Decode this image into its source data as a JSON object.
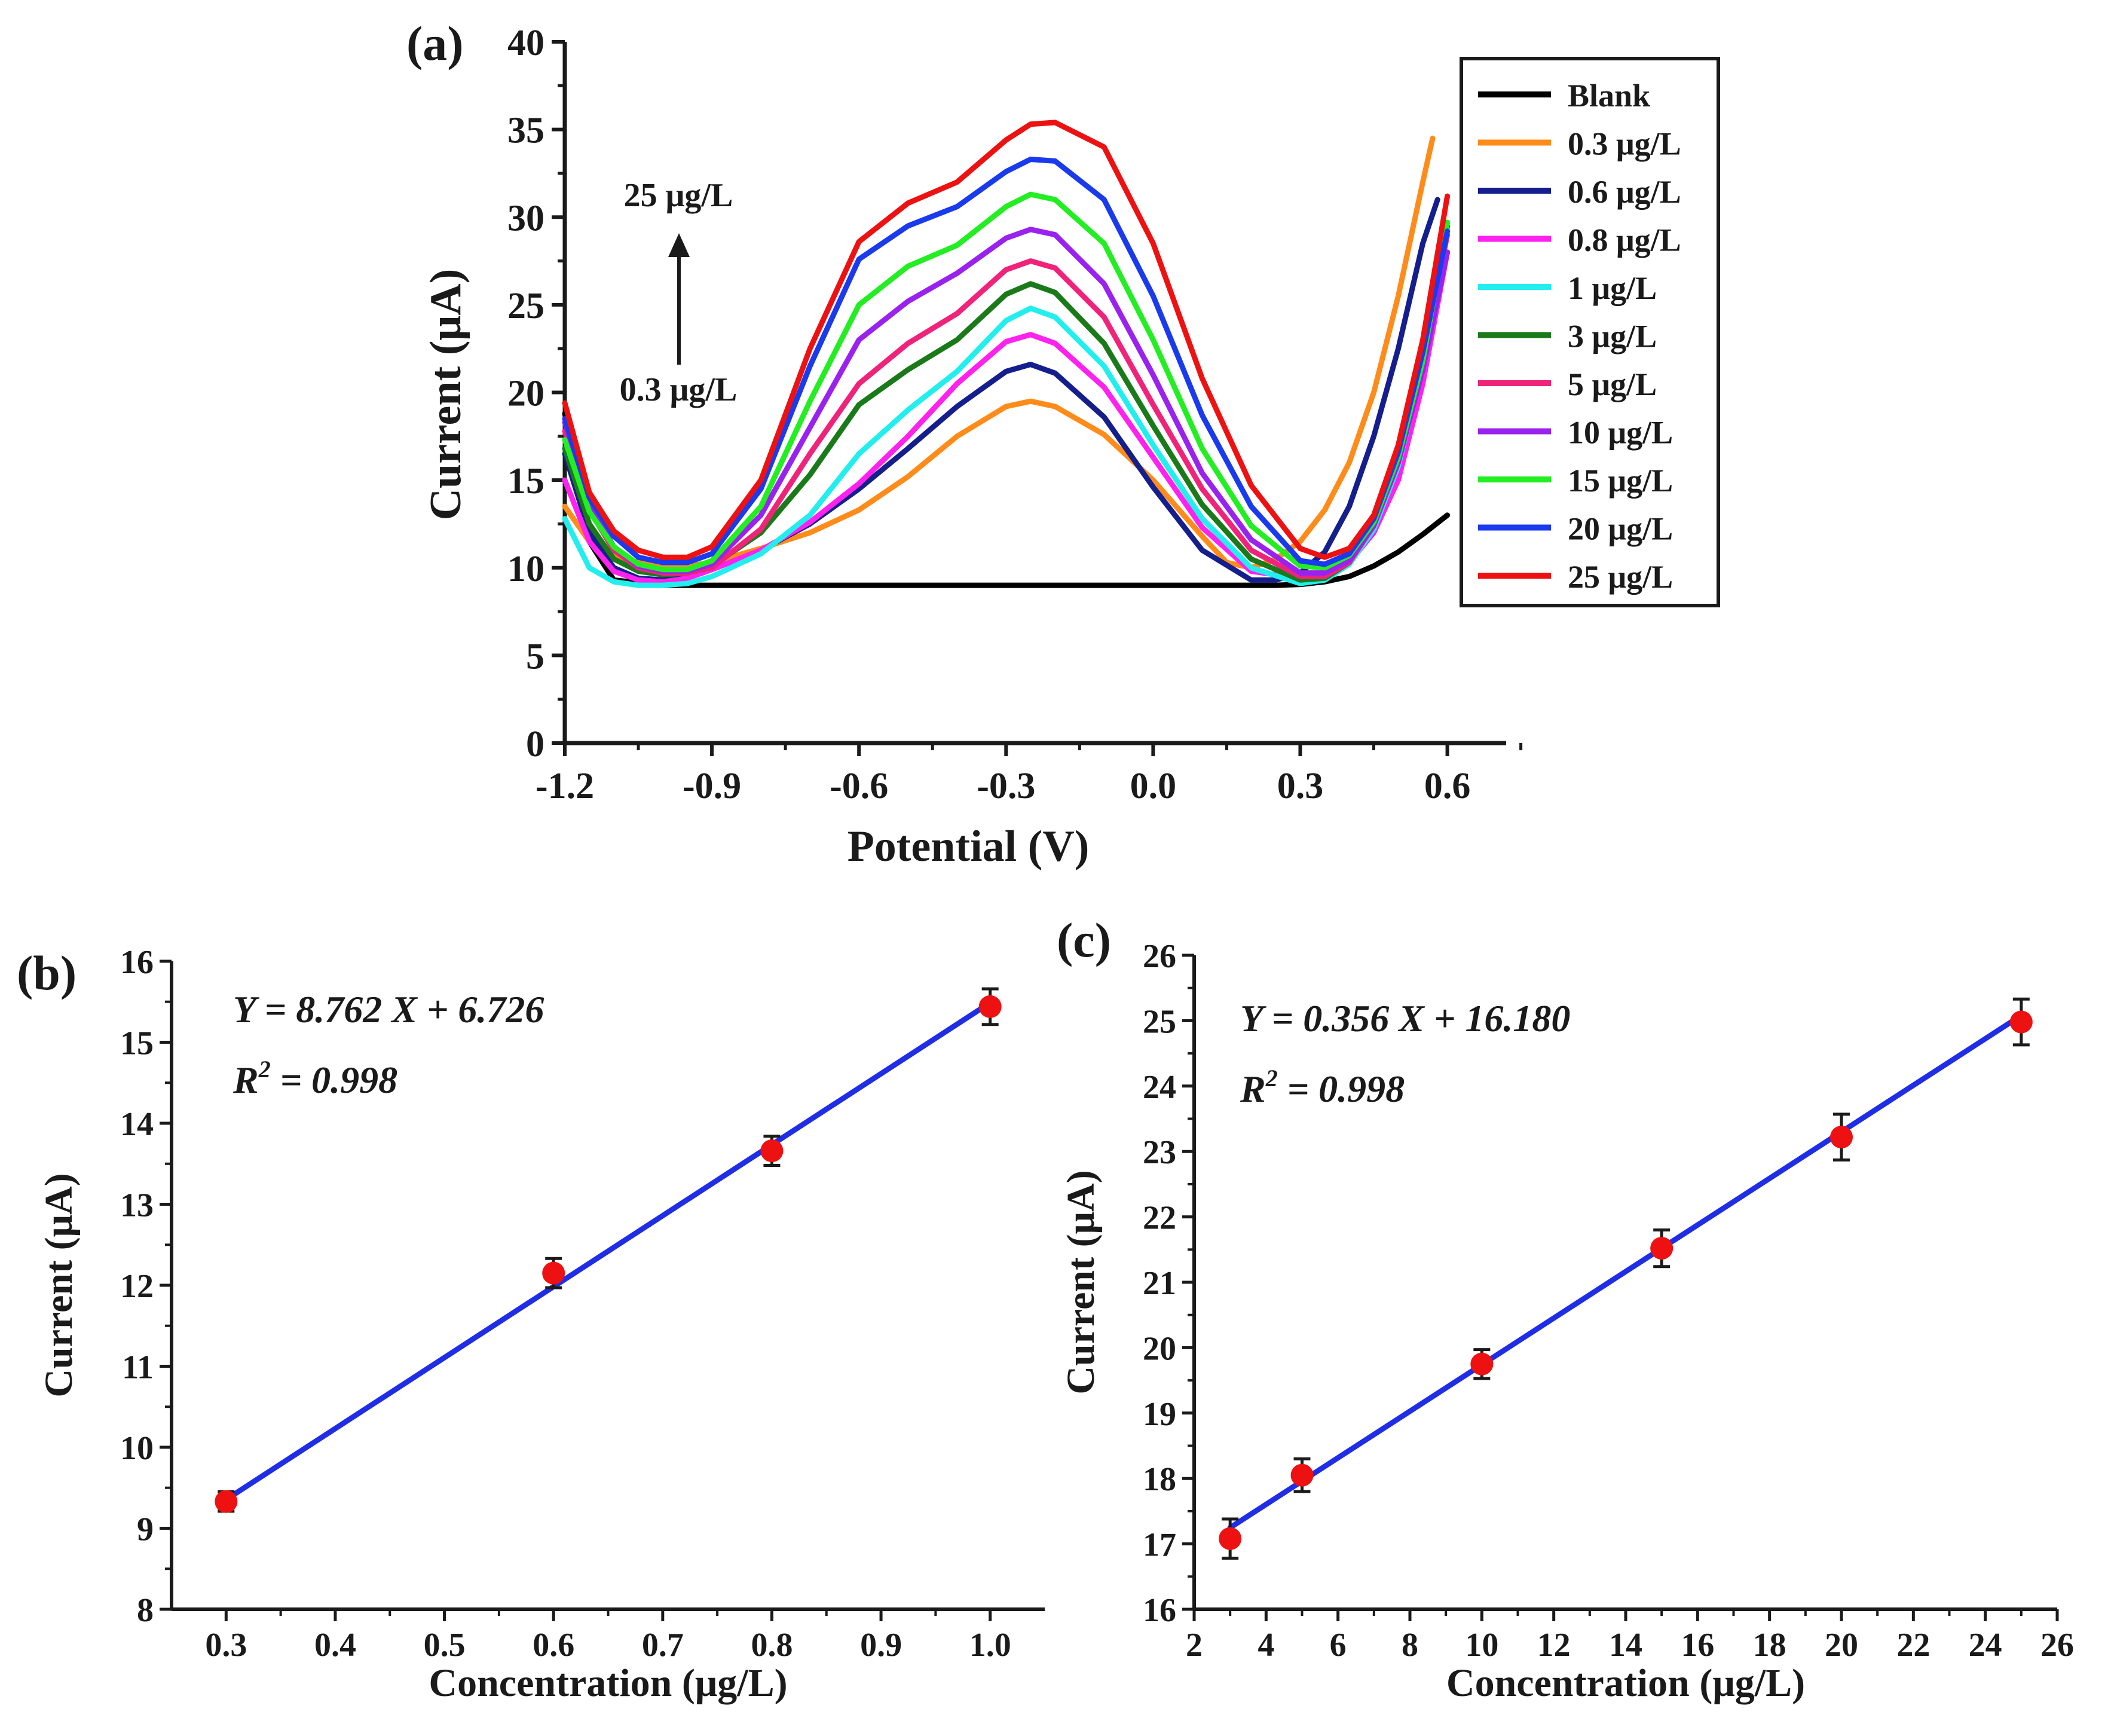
{
  "chart_data": [
    {
      "type": "line",
      "panel_label": "(a)",
      "xlabel": "Potential (V)",
      "ylabel": "Current (μA)",
      "xlim": [
        -1.2,
        0.72
      ],
      "ylim": [
        0,
        40
      ],
      "xticks": [
        "-1.2",
        "-0.9",
        "-0.6",
        "-0.3",
        "0.0",
        "0.3",
        "0.6"
      ],
      "yticks": [
        "0",
        "5",
        "10",
        "15",
        "20",
        "25",
        "30",
        "35",
        "40"
      ],
      "annotation_top": "25 μg/L",
      "annotation_bottom": "0.3 μg/L",
      "legend_position": "top-right",
      "series": [
        {
          "name": "Blank",
          "color": "#000000",
          "x": [
            -1.2,
            -1.15,
            -1.1,
            -1.0,
            -0.9,
            -0.6,
            -0.3,
            0.0,
            0.25,
            0.3,
            0.35,
            0.4,
            0.45,
            0.5,
            0.55,
            0.6
          ],
          "y": [
            18.8,
            11.5,
            9.3,
            9.0,
            9.0,
            9.0,
            9.0,
            9.0,
            9.0,
            9.05,
            9.2,
            9.5,
            10.1,
            10.9,
            11.9,
            13.0
          ]
        },
        {
          "name": "0.3 μg/L",
          "color": "#ff8c1a",
          "x": [
            -1.2,
            -1.15,
            -1.1,
            -1.05,
            -1.0,
            -0.95,
            -0.9,
            -0.8,
            -0.7,
            -0.6,
            -0.5,
            -0.4,
            -0.3,
            -0.25,
            -0.2,
            -0.1,
            0.0,
            0.1,
            0.15,
            0.2,
            0.25,
            0.3,
            0.35,
            0.4,
            0.45,
            0.5,
            0.55,
            0.57
          ],
          "y": [
            13.5,
            11.5,
            10.7,
            10.3,
            10.1,
            10.1,
            10.3,
            11.1,
            12.0,
            13.3,
            15.2,
            17.5,
            19.2,
            19.5,
            19.2,
            17.6,
            15.0,
            11.8,
            10.3,
            10.0,
            10.5,
            11.5,
            13.3,
            16.0,
            20.0,
            25.5,
            32.0,
            34.5
          ]
        },
        {
          "name": "0.6 μg/L",
          "color": "#141e8c",
          "x": [
            -1.2,
            -1.15,
            -1.1,
            -1.05,
            -1.0,
            -0.95,
            -0.9,
            -0.8,
            -0.7,
            -0.6,
            -0.5,
            -0.4,
            -0.3,
            -0.25,
            -0.2,
            -0.1,
            0.0,
            0.1,
            0.2,
            0.25,
            0.3,
            0.35,
            0.4,
            0.45,
            0.5,
            0.55,
            0.58
          ],
          "y": [
            16.5,
            12.0,
            10.0,
            9.4,
            9.3,
            9.5,
            9.9,
            11.0,
            12.5,
            14.5,
            16.8,
            19.2,
            21.2,
            21.6,
            21.1,
            18.6,
            14.6,
            11.0,
            9.3,
            9.3,
            9.7,
            10.9,
            13.5,
            17.5,
            22.5,
            28.5,
            31.0
          ]
        },
        {
          "name": "0.8 μg/L",
          "color": "#ff22ee",
          "x": [
            -1.2,
            -1.15,
            -1.1,
            -1.05,
            -1.0,
            -0.95,
            -0.9,
            -0.8,
            -0.7,
            -0.6,
            -0.5,
            -0.4,
            -0.3,
            -0.25,
            -0.2,
            -0.1,
            0.0,
            0.1,
            0.2,
            0.3,
            0.35,
            0.4,
            0.45,
            0.5,
            0.55,
            0.6
          ],
          "y": [
            15.0,
            11.5,
            9.8,
            9.3,
            9.2,
            9.4,
            9.9,
            11.0,
            12.6,
            14.8,
            17.5,
            20.5,
            22.9,
            23.3,
            22.8,
            20.3,
            16.3,
            12.3,
            9.8,
            9.4,
            9.6,
            10.3,
            12.0,
            15.0,
            20.5,
            28.0
          ]
        },
        {
          "name": "1 μg/L",
          "color": "#22eeee",
          "x": [
            -1.2,
            -1.15,
            -1.1,
            -1.05,
            -1.0,
            -0.95,
            -0.9,
            -0.8,
            -0.7,
            -0.6,
            -0.5,
            -0.4,
            -0.3,
            -0.25,
            -0.2,
            -0.1,
            0.0,
            0.1,
            0.2,
            0.3,
            0.35,
            0.4,
            0.45,
            0.5,
            0.55,
            0.6
          ],
          "y": [
            12.8,
            10.0,
            9.2,
            9.0,
            9.0,
            9.1,
            9.5,
            10.8,
            13.0,
            16.5,
            19.0,
            21.2,
            24.1,
            24.8,
            24.3,
            21.5,
            17.0,
            12.8,
            10.0,
            9.1,
            9.3,
            10.2,
            12.2,
            15.8,
            21.5,
            29.5
          ]
        },
        {
          "name": "3 μg/L",
          "color": "#1a7a1a",
          "x": [
            -1.2,
            -1.15,
            -1.1,
            -1.05,
            -1.0,
            -0.95,
            -0.9,
            -0.8,
            -0.7,
            -0.6,
            -0.5,
            -0.4,
            -0.3,
            -0.25,
            -0.2,
            -0.1,
            0.0,
            0.1,
            0.2,
            0.3,
            0.35,
            0.4,
            0.45,
            0.5,
            0.55,
            0.6
          ],
          "y": [
            16.8,
            12.5,
            10.5,
            9.8,
            9.6,
            9.7,
            10.1,
            12.0,
            15.3,
            19.3,
            21.3,
            23.0,
            25.6,
            26.2,
            25.7,
            22.8,
            18.1,
            13.6,
            10.5,
            9.3,
            9.4,
            10.3,
            12.5,
            16.3,
            22.0,
            29.5
          ]
        },
        {
          "name": "5 μg/L",
          "color": "#f0237a",
          "x": [
            -1.2,
            -1.15,
            -1.1,
            -1.05,
            -1.0,
            -0.95,
            -0.9,
            -0.8,
            -0.7,
            -0.6,
            -0.5,
            -0.4,
            -0.3,
            -0.25,
            -0.2,
            -0.1,
            0.0,
            0.1,
            0.2,
            0.3,
            0.35,
            0.4,
            0.45,
            0.5,
            0.55,
            0.6
          ],
          "y": [
            17.8,
            13.3,
            11.0,
            10.0,
            9.7,
            9.7,
            10.0,
            12.2,
            16.5,
            20.5,
            22.8,
            24.5,
            27.0,
            27.5,
            27.1,
            24.3,
            19.3,
            14.5,
            11.0,
            9.5,
            9.5,
            10.3,
            12.4,
            16.2,
            21.8,
            29.0
          ]
        },
        {
          "name": "10 μg/L",
          "color": "#9a22ee",
          "x": [
            -1.2,
            -1.15,
            -1.1,
            -1.05,
            -1.0,
            -0.95,
            -0.9,
            -0.8,
            -0.7,
            -0.6,
            -0.5,
            -0.4,
            -0.3,
            -0.25,
            -0.2,
            -0.1,
            0.0,
            0.1,
            0.2,
            0.3,
            0.35,
            0.4,
            0.45,
            0.5,
            0.55,
            0.6
          ],
          "y": [
            18.3,
            13.6,
            11.2,
            10.1,
            9.8,
            9.8,
            10.2,
            13.0,
            18.0,
            23.0,
            25.2,
            26.8,
            28.8,
            29.3,
            29.0,
            26.2,
            21.0,
            15.4,
            11.6,
            9.7,
            9.7,
            10.4,
            12.4,
            16.0,
            21.3,
            28.0
          ]
        },
        {
          "name": "15 μg/L",
          "color": "#22ee22",
          "x": [
            -1.2,
            -1.15,
            -1.1,
            -1.05,
            -1.0,
            -0.95,
            -0.9,
            -0.8,
            -0.7,
            -0.6,
            -0.5,
            -0.4,
            -0.3,
            -0.25,
            -0.2,
            -0.1,
            0.0,
            0.1,
            0.2,
            0.3,
            0.35,
            0.4,
            0.45,
            0.5,
            0.55,
            0.6
          ],
          "y": [
            17.3,
            13.2,
            11.2,
            10.2,
            9.9,
            9.9,
            10.4,
            13.5,
            19.5,
            25.0,
            27.2,
            28.4,
            30.6,
            31.3,
            31.0,
            28.5,
            23.0,
            16.8,
            12.4,
            10.1,
            10.0,
            10.7,
            12.6,
            16.3,
            21.8,
            29.7
          ]
        },
        {
          "name": "20 μg/L",
          "color": "#1a3aee",
          "x": [
            -1.2,
            -1.15,
            -1.1,
            -1.05,
            -1.0,
            -0.95,
            -0.9,
            -0.8,
            -0.7,
            -0.6,
            -0.5,
            -0.4,
            -0.3,
            -0.25,
            -0.2,
            -0.1,
            0.0,
            0.1,
            0.2,
            0.3,
            0.35,
            0.4,
            0.45,
            0.5,
            0.55,
            0.6
          ],
          "y": [
            18.5,
            14.0,
            11.8,
            10.6,
            10.3,
            10.3,
            10.8,
            14.5,
            21.5,
            27.6,
            29.5,
            30.6,
            32.6,
            33.3,
            33.2,
            31.0,
            25.5,
            18.7,
            13.5,
            10.4,
            10.2,
            10.8,
            12.8,
            16.6,
            22.3,
            29.2
          ]
        },
        {
          "name": "25 μg/L",
          "color": "#ee1111",
          "x": [
            -1.2,
            -1.15,
            -1.1,
            -1.05,
            -1.0,
            -0.95,
            -0.9,
            -0.8,
            -0.7,
            -0.6,
            -0.5,
            -0.4,
            -0.3,
            -0.25,
            -0.2,
            -0.1,
            0.0,
            0.1,
            0.2,
            0.3,
            0.35,
            0.4,
            0.45,
            0.5,
            0.55,
            0.6
          ],
          "y": [
            19.4,
            14.3,
            12.1,
            11.0,
            10.6,
            10.6,
            11.2,
            15.0,
            22.5,
            28.6,
            30.8,
            32.0,
            34.4,
            35.3,
            35.4,
            34.0,
            28.5,
            20.8,
            14.7,
            11.1,
            10.6,
            11.1,
            13.0,
            17.0,
            23.0,
            31.2
          ]
        }
      ]
    },
    {
      "type": "scatter",
      "panel_label": "(b)",
      "xlabel": "Concentration (μg/L)",
      "ylabel": "Current (μA)",
      "xlim": [
        0.25,
        1.05
      ],
      "ylim": [
        8,
        16
      ],
      "xticks": [
        0.3,
        0.4,
        0.5,
        0.6,
        0.7,
        0.8,
        0.9,
        1.0
      ],
      "xtick_labels": [
        "0.3",
        "0.4",
        "0.5",
        "0.6",
        "0.7",
        "0.8",
        "0.9",
        "1.0"
      ],
      "yticks": [
        8,
        9,
        10,
        11,
        12,
        13,
        14,
        15,
        16
      ],
      "ytick_labels": [
        "8",
        "9",
        "10",
        "11",
        "12",
        "13",
        "14",
        "15",
        "16"
      ],
      "equation": "Y = 8.762 X + 6.726",
      "r2_prefix": "R",
      "r2_sup": "2",
      "r2_value": " = 0.998",
      "fit": {
        "slope": 8.762,
        "intercept": 6.726,
        "x_range": [
          0.3,
          1.0
        ],
        "color": "#1f2ee6"
      },
      "marker_color": "#ee1111",
      "points": [
        {
          "x": 0.3,
          "y": 9.33,
          "err": 0.12
        },
        {
          "x": 0.6,
          "y": 12.15,
          "err": 0.18
        },
        {
          "x": 0.8,
          "y": 13.66,
          "err": 0.18
        },
        {
          "x": 1.0,
          "y": 15.44,
          "err": 0.22
        }
      ]
    },
    {
      "type": "scatter",
      "panel_label": "(c)",
      "xlabel": "Concentration (μg/L)",
      "ylabel": "Current (μA)",
      "xlim": [
        2,
        26
      ],
      "ylim": [
        16,
        26
      ],
      "xticks": [
        2,
        4,
        6,
        8,
        10,
        12,
        14,
        16,
        18,
        20,
        22,
        24,
        26
      ],
      "xtick_labels": [
        "2",
        "4",
        "6",
        "8",
        "10",
        "12",
        "14",
        "16",
        "18",
        "20",
        "22",
        "24",
        "26"
      ],
      "yticks": [
        16,
        17,
        18,
        19,
        20,
        21,
        22,
        23,
        24,
        25,
        26
      ],
      "ytick_labels": [
        "16",
        "17",
        "18",
        "19",
        "20",
        "21",
        "22",
        "23",
        "24",
        "25",
        "26"
      ],
      "equation": "Y = 0.356 X + 16.180",
      "r2_prefix": "R",
      "r2_sup": "2",
      "r2_value": " = 0.998",
      "fit": {
        "slope": 0.356,
        "intercept": 16.18,
        "x_range": [
          3,
          25
        ],
        "color": "#1f2ee6"
      },
      "marker_color": "#ee1111",
      "points": [
        {
          "x": 3,
          "y": 17.08,
          "err": 0.3
        },
        {
          "x": 5,
          "y": 18.05,
          "err": 0.25
        },
        {
          "x": 10,
          "y": 19.75,
          "err": 0.22
        },
        {
          "x": 15,
          "y": 21.52,
          "err": 0.28
        },
        {
          "x": 20,
          "y": 23.22,
          "err": 0.35
        },
        {
          "x": 25,
          "y": 24.98,
          "err": 0.35
        }
      ]
    }
  ]
}
